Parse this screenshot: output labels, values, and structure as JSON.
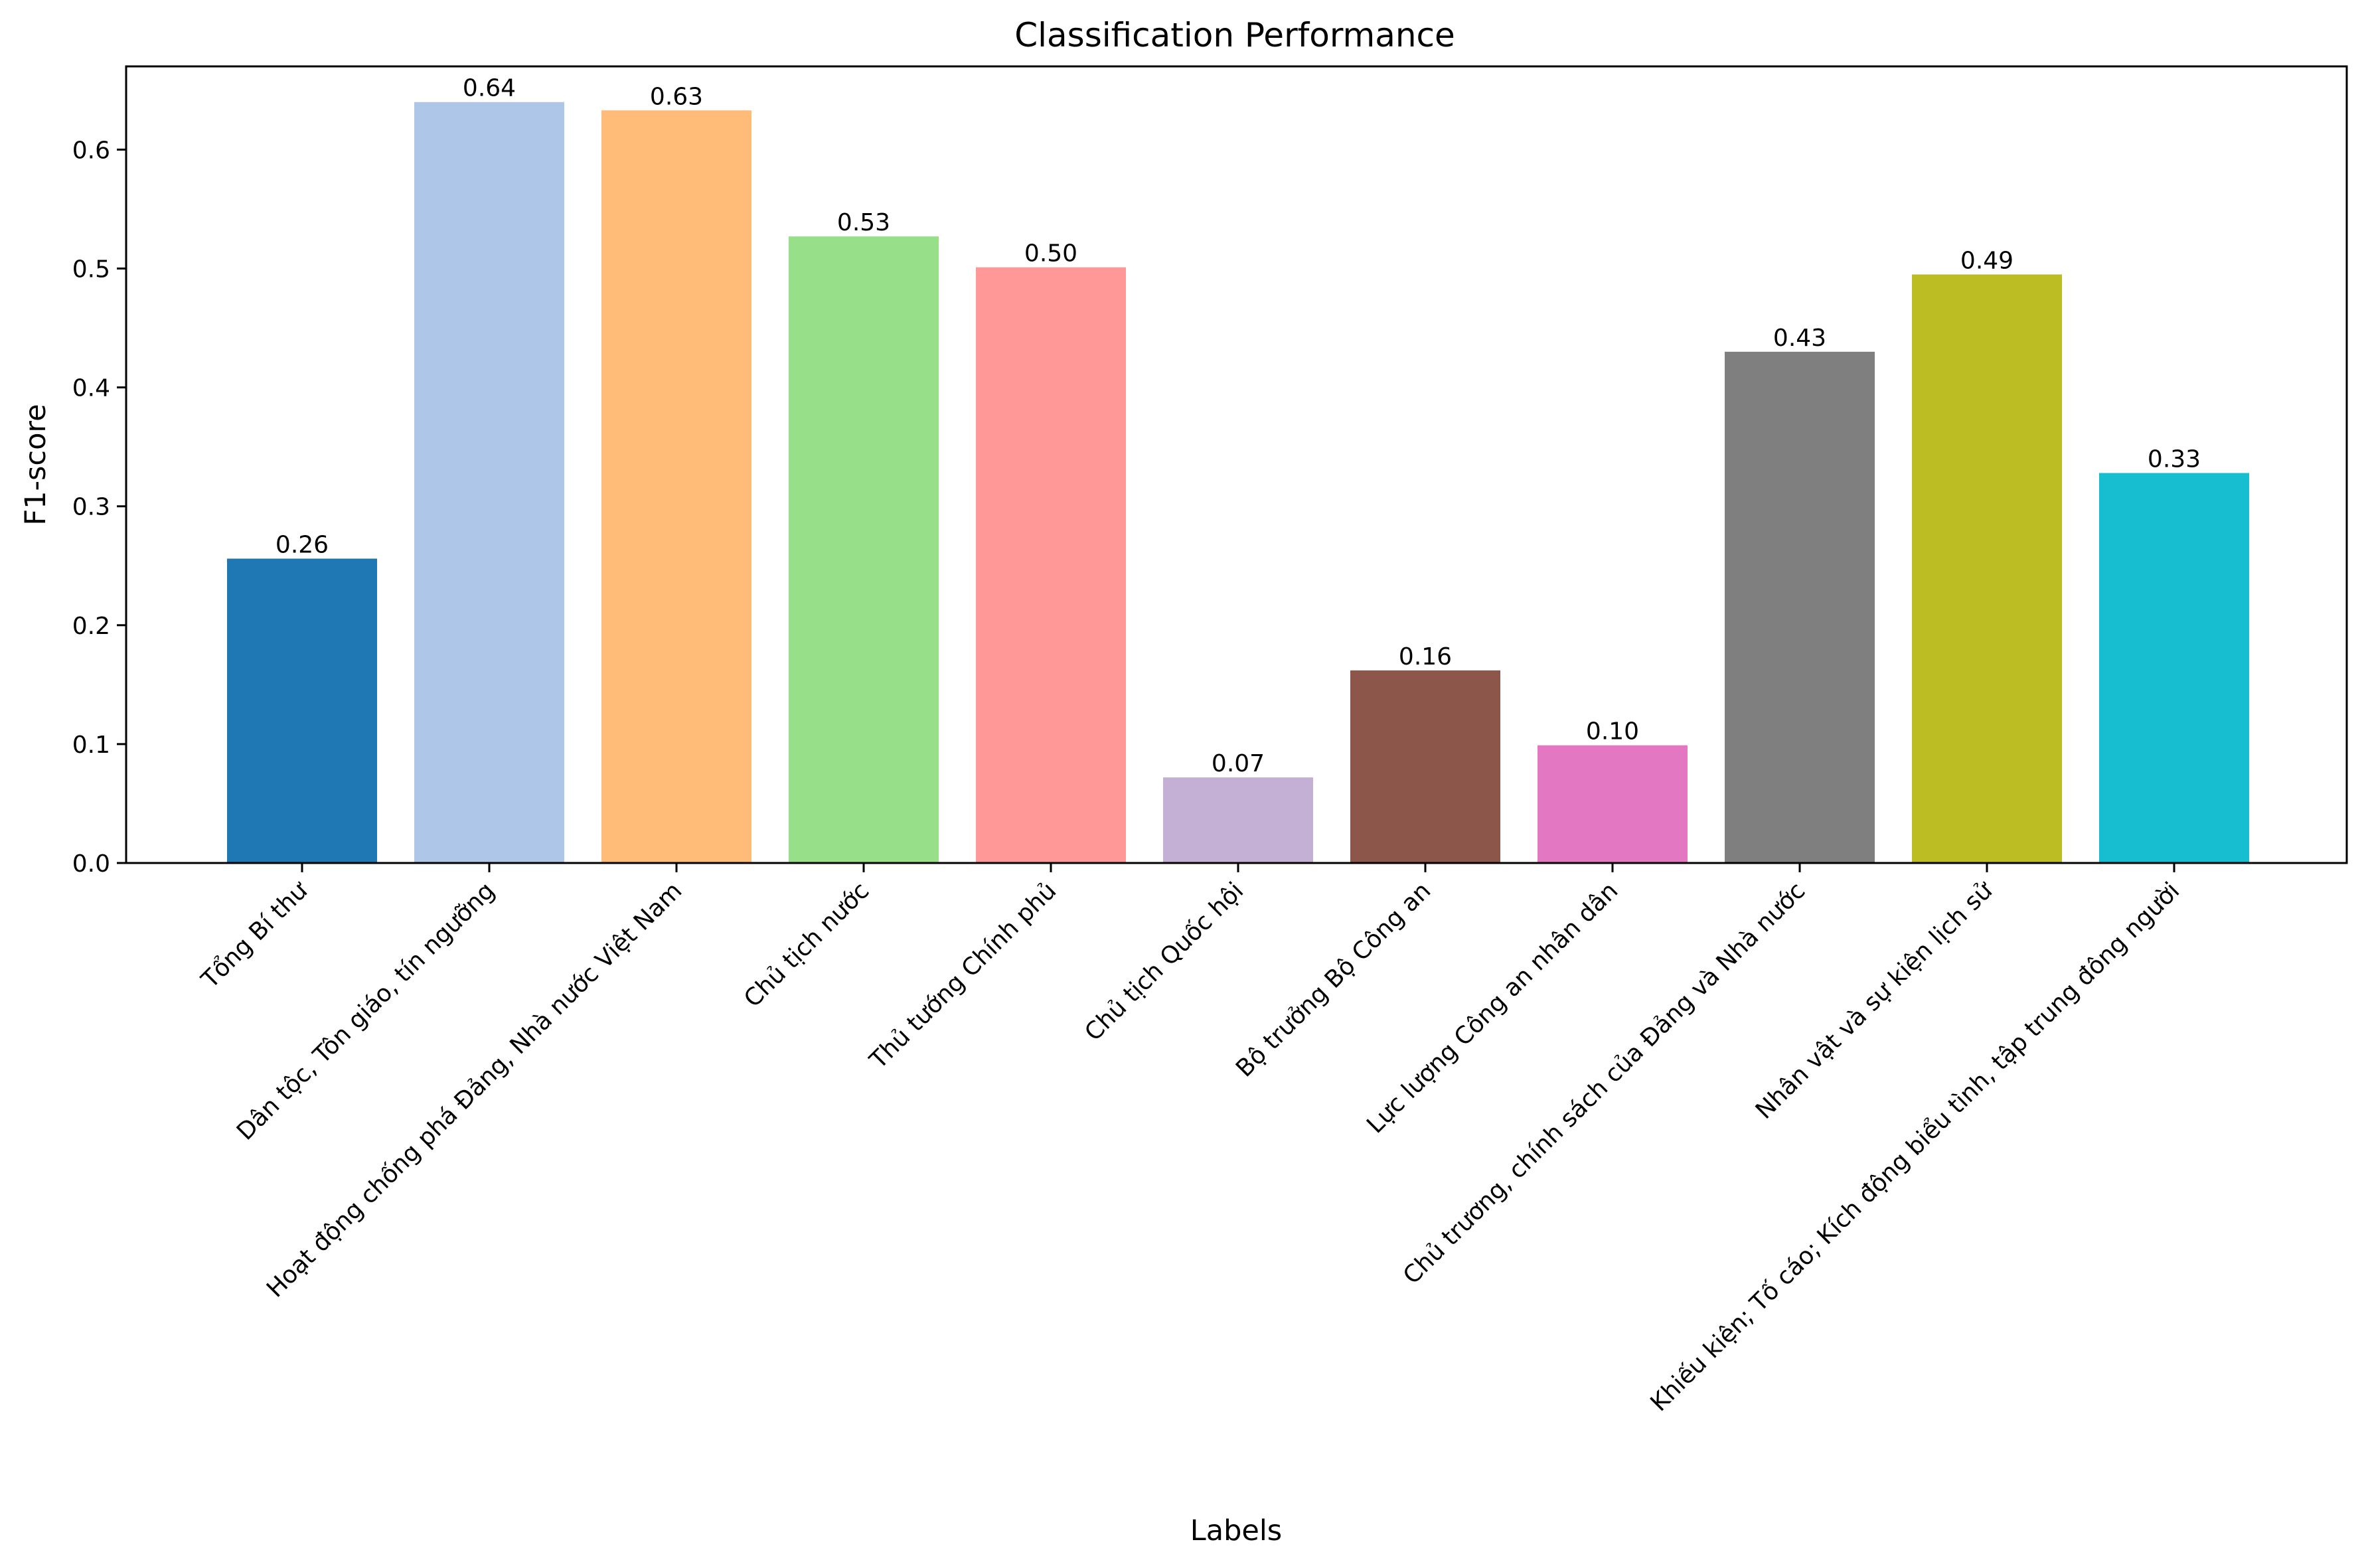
{
  "chart_data": {
    "type": "bar",
    "title": "Classification Performance",
    "xlabel": "Labels",
    "ylabel": "F1-score",
    "ylim": [
      0,
      0.67
    ],
    "yticks": [
      "0.0",
      "0.1",
      "0.2",
      "0.3",
      "0.4",
      "0.5",
      "0.6"
    ],
    "grid": false,
    "categories": [
      "Tổng Bí thư",
      "Dân tộc, Tôn giáo, tín ngưỡng",
      "Hoạt động chống phá Đảng, Nhà nước Việt Nam",
      "Chủ tịch nước",
      "Thủ tướng Chính phủ",
      "Chủ tịch Quốc hội",
      "Bộ trưởng Bộ Công an",
      "Lực lượng Công an nhân dân",
      "Chủ trương, chính sách của Đảng và Nhà nước",
      "Nhân vật và sự kiện lịch sử",
      "Khiếu kiện; Tố cáo; Kích động biểu tình, tập trung đông người"
    ],
    "values": [
      0.256,
      0.64,
      0.633,
      0.527,
      0.501,
      0.072,
      0.162,
      0.099,
      0.43,
      0.495,
      0.328
    ],
    "data_labels": [
      "0.26",
      "0.64",
      "0.63",
      "0.53",
      "0.50",
      "0.07",
      "0.16",
      "0.10",
      "0.43",
      "0.49",
      "0.33"
    ],
    "colors": [
      "#1f77b4",
      "#aec7e8",
      "#ffbb78",
      "#98df8a",
      "#ff9896",
      "#c5b0d5",
      "#8c564b",
      "#e377c2",
      "#7f7f7f",
      "#bcbd22",
      "#17becf"
    ]
  }
}
